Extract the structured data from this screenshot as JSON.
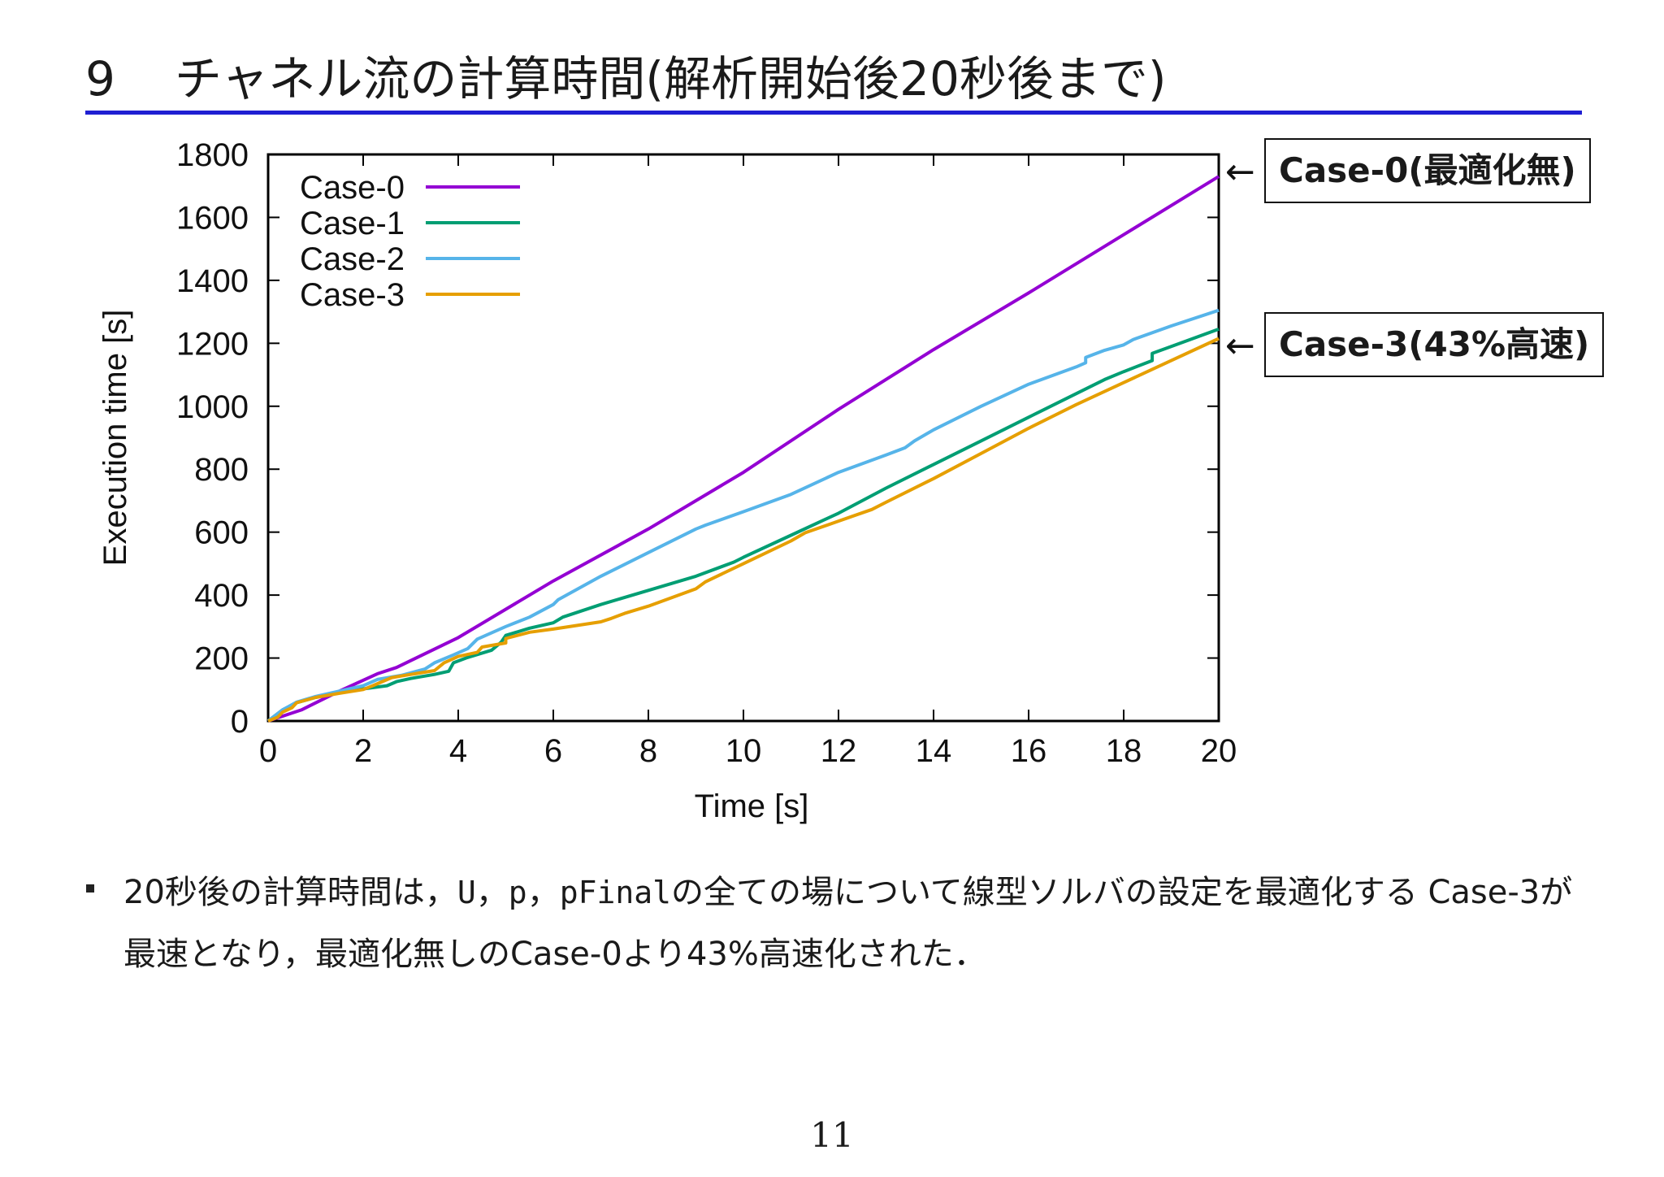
{
  "slide": {
    "section_number": "9",
    "title": "チャネル流の計算時間(解析開始後20秒後まで)",
    "page_number": "11"
  },
  "colors": {
    "title_rule": "#1f1fd2"
  },
  "callouts": {
    "arrow_glyph": "←",
    "case0": "Case-0(最適化無)",
    "case3": "Case-3(43%高速)"
  },
  "bullet": {
    "part1": "20秒後の計算時間は，",
    "code_u": "U",
    "sep1": "，",
    "code_p": "p",
    "sep2": "，",
    "code_pfinal": "pFinal",
    "part2": "の全ての場について線型ソルバの設定を最適化する Case-3が最速となり，最適化無しのCase-0より43%高速化された．"
  },
  "chart_data": {
    "type": "line",
    "xlabel": "Time [s]",
    "ylabel": "Execution time [s]",
    "xlim": [
      0,
      20
    ],
    "ylim": [
      0,
      1800
    ],
    "xticks": [
      0,
      2,
      4,
      6,
      8,
      10,
      12,
      14,
      16,
      18,
      20
    ],
    "yticks": [
      0,
      200,
      400,
      600,
      800,
      1000,
      1200,
      1400,
      1600,
      1800
    ],
    "grid": false,
    "legend_position": "top-left",
    "series": [
      {
        "name": "Case-0",
        "color": "#9400d3",
        "points": [
          [
            0,
            0
          ],
          [
            0.7,
            35
          ],
          [
            1.5,
            95
          ],
          [
            2.3,
            150
          ],
          [
            2.7,
            170
          ],
          [
            4,
            265
          ],
          [
            6,
            445
          ],
          [
            8,
            610
          ],
          [
            10,
            790
          ],
          [
            12,
            990
          ],
          [
            14,
            1180
          ],
          [
            16,
            1360
          ],
          [
            18,
            1545
          ],
          [
            20,
            1730
          ]
        ]
      },
      {
        "name": "Case-1",
        "color": "#009e73",
        "points": [
          [
            0,
            0
          ],
          [
            0.3,
            35
          ],
          [
            0.6,
            58
          ],
          [
            1,
            75
          ],
          [
            1.5,
            90
          ],
          [
            2,
            102
          ],
          [
            2.5,
            112
          ],
          [
            2.7,
            125
          ],
          [
            3,
            135
          ],
          [
            3.5,
            148
          ],
          [
            3.8,
            158
          ],
          [
            3.9,
            185
          ],
          [
            4.2,
            202
          ],
          [
            4.7,
            225
          ],
          [
            4.9,
            250
          ],
          [
            5,
            272
          ],
          [
            5.5,
            295
          ],
          [
            6,
            312
          ],
          [
            6.2,
            330
          ],
          [
            7,
            370
          ],
          [
            8,
            415
          ],
          [
            9,
            460
          ],
          [
            9.8,
            505
          ],
          [
            10,
            520
          ],
          [
            11,
            590
          ],
          [
            12,
            660
          ],
          [
            13,
            740
          ],
          [
            14,
            815
          ],
          [
            15,
            890
          ],
          [
            16,
            965
          ],
          [
            17,
            1040
          ],
          [
            17.6,
            1085
          ],
          [
            18,
            1110
          ],
          [
            18.6,
            1145
          ],
          [
            18.6,
            1168
          ],
          [
            19,
            1190
          ],
          [
            20,
            1245
          ]
        ]
      },
      {
        "name": "Case-2",
        "color": "#56b4e9",
        "points": [
          [
            0,
            0
          ],
          [
            0.3,
            35
          ],
          [
            0.6,
            60
          ],
          [
            1,
            78
          ],
          [
            1.5,
            95
          ],
          [
            2,
            112
          ],
          [
            2.3,
            132
          ],
          [
            2.8,
            145
          ],
          [
            3.3,
            165
          ],
          [
            3.5,
            185
          ],
          [
            3.9,
            210
          ],
          [
            4.2,
            230
          ],
          [
            4.4,
            260
          ],
          [
            5,
            300
          ],
          [
            5.5,
            330
          ],
          [
            6,
            370
          ],
          [
            6.1,
            385
          ],
          [
            7,
            460
          ],
          [
            8,
            535
          ],
          [
            9,
            610
          ],
          [
            9.2,
            622
          ],
          [
            10,
            665
          ],
          [
            11,
            720
          ],
          [
            12,
            790
          ],
          [
            13,
            845
          ],
          [
            13.4,
            868
          ],
          [
            13.6,
            890
          ],
          [
            14,
            925
          ],
          [
            15,
            1000
          ],
          [
            16,
            1070
          ],
          [
            17,
            1125
          ],
          [
            17.2,
            1138
          ],
          [
            17.2,
            1155
          ],
          [
            17.6,
            1178
          ],
          [
            18,
            1195
          ],
          [
            18.2,
            1212
          ],
          [
            19,
            1255
          ],
          [
            20,
            1305
          ]
        ]
      },
      {
        "name": "Case-3",
        "color": "#e69f00",
        "points": [
          [
            0,
            0
          ],
          [
            0.2,
            12
          ],
          [
            0.3,
            28
          ],
          [
            0.5,
            42
          ],
          [
            0.6,
            58
          ],
          [
            1,
            75
          ],
          [
            1.5,
            88
          ],
          [
            2,
            100
          ],
          [
            2.2,
            112
          ],
          [
            2.6,
            138
          ],
          [
            3,
            148
          ],
          [
            3.5,
            160
          ],
          [
            3.7,
            185
          ],
          [
            4,
            205
          ],
          [
            4.4,
            218
          ],
          [
            4.5,
            235
          ],
          [
            5,
            248
          ],
          [
            5,
            262
          ],
          [
            5.5,
            282
          ],
          [
            6,
            292
          ],
          [
            7,
            315
          ],
          [
            7.2,
            325
          ],
          [
            7.5,
            342
          ],
          [
            8,
            365
          ],
          [
            9,
            420
          ],
          [
            9.2,
            442
          ],
          [
            10,
            500
          ],
          [
            11,
            572
          ],
          [
            11.3,
            598
          ],
          [
            12,
            635
          ],
          [
            12.7,
            672
          ],
          [
            13,
            695
          ],
          [
            14,
            770
          ],
          [
            15,
            850
          ],
          [
            16,
            930
          ],
          [
            17,
            1005
          ],
          [
            18,
            1075
          ],
          [
            19,
            1145
          ],
          [
            20,
            1215
          ]
        ]
      }
    ]
  }
}
